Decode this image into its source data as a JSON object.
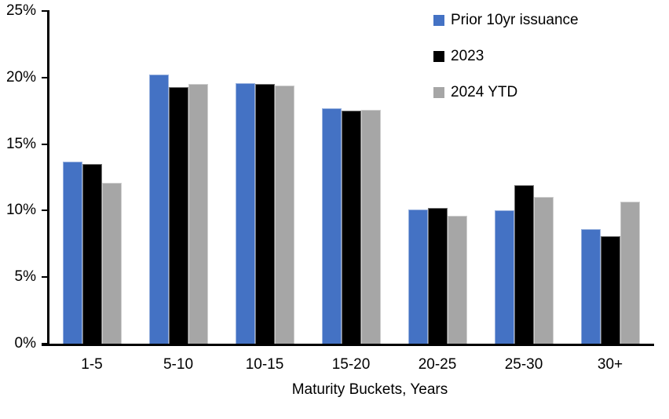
{
  "chart_data": {
    "type": "bar",
    "title": "",
    "xlabel": "Maturity Buckets, Years",
    "ylabel": "",
    "ylim": [
      0,
      25
    ],
    "ytick_step": 5,
    "ytick_labels": [
      "0%",
      "5%",
      "10%",
      "15%",
      "20%",
      "25%"
    ],
    "grid": false,
    "legend_position": "top-right",
    "categories": [
      "1-5",
      "5-10",
      "10-15",
      "15-20",
      "20-25",
      "25-30",
      "30+"
    ],
    "series": [
      {
        "name": "Prior 10yr issuance",
        "color": "#4472C4",
        "values": [
          13.7,
          20.2,
          19.6,
          17.7,
          10.1,
          10.0,
          8.6
        ]
      },
      {
        "name": "2023",
        "color": "#000000",
        "values": [
          13.5,
          19.3,
          19.5,
          17.5,
          10.2,
          11.9,
          8.1
        ]
      },
      {
        "name": "2024 YTD",
        "color": "#A6A6A6",
        "values": [
          12.1,
          19.5,
          19.4,
          17.6,
          9.6,
          11.0,
          10.7
        ]
      }
    ],
    "axis_color": "#000000",
    "background_color": "#FFFFFF"
  }
}
